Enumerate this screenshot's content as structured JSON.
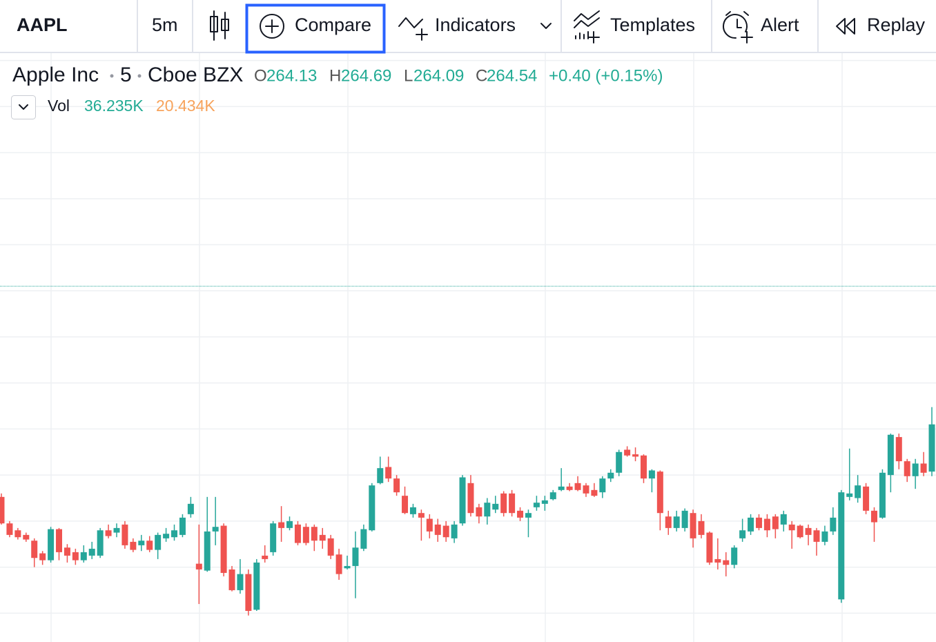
{
  "toolbar": {
    "symbol": "AAPL",
    "interval": "5m",
    "buttons": [
      "Compare",
      "Indicators",
      "Templates",
      "Alert",
      "Replay"
    ]
  },
  "legend": {
    "name": "Apple Inc",
    "interval": "5",
    "exchange": "Cboe BZX",
    "open_label": "O",
    "open": 264.13,
    "high_label": "H",
    "high": 264.69,
    "low_label": "L",
    "low": 264.09,
    "close_label": "C",
    "close": 264.54,
    "change": "+0.40 (+0.15%)",
    "volume_label": "Vol",
    "volume": "36.235K",
    "volume_ma": "20.434K"
  },
  "chart_data": {
    "type": "candlestick",
    "up_color": "#26a69a",
    "down_color": "#ef5350",
    "ylim": [
      262.65,
      267.77
    ],
    "ygrid": [
      262.9,
      263.3,
      263.7,
      264.1,
      264.5,
      264.9,
      265.3,
      265.7,
      266.1,
      266.5,
      266.9,
      267.3,
      267.7
    ],
    "ref_line": 265.74,
    "open": [
      263.91,
      263.68,
      263.62,
      263.58,
      263.53,
      263.42,
      263.36,
      263.63,
      263.47,
      263.43,
      263.36,
      263.4,
      263.4,
      263.62,
      263.6,
      263.67,
      263.52,
      263.49,
      263.53,
      263.45,
      263.55,
      263.56,
      263.58,
      263.76,
      263.33,
      263.27,
      263.61,
      263.66,
      263.28,
      263.1,
      263.24,
      262.93,
      263.4,
      263.43,
      263.69,
      263.64,
      263.67,
      263.65,
      263.65,
      263.58,
      263.55,
      263.41,
      263.29,
      263.31,
      263.46,
      263.62,
      264.03,
      264.17,
      264.07,
      263.92,
      263.76,
      263.77,
      263.72,
      263.67,
      263.66,
      263.55,
      263.68,
      264.03,
      263.82,
      263.74,
      263.8,
      263.94,
      263.94,
      263.79,
      263.73,
      263.82,
      263.85,
      263.89,
      263.97,
      264.0,
      264.03,
      264.01,
      263.97,
      263.95,
      264.07,
      264.12,
      264.32,
      264.28,
      264.27,
      264.07,
      264.13,
      263.74,
      263.64,
      263.64,
      263.77,
      263.7,
      263.6,
      263.37,
      263.36,
      263.32,
      263.55,
      263.61,
      263.73,
      263.72,
      263.74,
      263.67,
      263.67,
      263.66,
      263.64,
      263.62,
      263.52,
      263.61,
      263.02,
      263.91,
      263.9,
      264.0,
      263.79,
      263.73,
      264.1,
      264.43,
      264.22,
      264.09,
      264.2,
      264.13
    ],
    "high": [
      263.94,
      263.7,
      263.64,
      263.6,
      263.55,
      263.44,
      263.65,
      263.64,
      263.5,
      263.46,
      263.49,
      263.52,
      263.64,
      263.67,
      263.68,
      263.7,
      263.55,
      263.58,
      263.57,
      263.6,
      263.64,
      263.67,
      263.76,
      263.91,
      263.67,
      263.91,
      263.91,
      263.68,
      263.31,
      263.37,
      263.28,
      263.37,
      263.49,
      263.7,
      263.83,
      263.74,
      263.7,
      263.68,
      263.67,
      263.64,
      263.58,
      263.46,
      263.4,
      263.61,
      263.67,
      264.03,
      264.26,
      264.26,
      264.1,
      264.0,
      263.85,
      263.8,
      263.76,
      263.72,
      263.7,
      263.7,
      264.1,
      264.1,
      263.85,
      263.9,
      263.92,
      263.96,
      263.97,
      263.82,
      263.8,
      263.92,
      263.92,
      263.97,
      264.16,
      264.03,
      264.09,
      264.03,
      264.03,
      264.09,
      264.15,
      264.32,
      264.35,
      264.34,
      264.28,
      264.15,
      264.14,
      263.79,
      263.79,
      263.81,
      263.8,
      263.76,
      263.61,
      263.55,
      263.43,
      263.49,
      263.72,
      263.76,
      263.76,
      263.76,
      263.76,
      263.79,
      263.7,
      263.67,
      263.67,
      263.64,
      263.66,
      263.82,
      263.97,
      264.33,
      264.1,
      264.03,
      263.82,
      264.15,
      264.46,
      264.46,
      264.24,
      264.24,
      264.3,
      264.69
    ],
    "low": [
      263.67,
      263.56,
      263.54,
      263.52,
      263.3,
      263.32,
      263.34,
      263.36,
      263.34,
      263.32,
      263.34,
      263.37,
      263.38,
      263.55,
      263.56,
      263.46,
      263.43,
      263.44,
      263.43,
      263.37,
      263.52,
      263.53,
      263.56,
      263.73,
      262.98,
      263.26,
      263.49,
      263.22,
      263.09,
      263.07,
      262.88,
      262.92,
      263.34,
      263.4,
      263.52,
      263.62,
      263.49,
      263.49,
      263.44,
      263.46,
      263.37,
      263.19,
      263.28,
      263.03,
      263.44,
      263.61,
      264.02,
      264.04,
      263.92,
      263.76,
      263.73,
      263.53,
      263.55,
      263.52,
      263.52,
      263.51,
      263.66,
      263.74,
      263.68,
      263.67,
      263.77,
      263.74,
      263.74,
      263.7,
      263.56,
      263.79,
      263.79,
      263.88,
      263.96,
      263.96,
      263.96,
      263.91,
      263.91,
      263.9,
      264.04,
      264.09,
      264.26,
      264.22,
      264.03,
      263.95,
      263.62,
      263.58,
      263.61,
      263.61,
      263.47,
      263.55,
      263.32,
      263.28,
      263.22,
      263.29,
      263.52,
      263.58,
      263.62,
      263.56,
      263.55,
      263.61,
      263.46,
      263.55,
      263.49,
      263.4,
      263.49,
      263.58,
      262.99,
      263.88,
      263.86,
      263.76,
      263.52,
      263.72,
      263.95,
      264.15,
      264.04,
      263.98,
      264.09,
      264.09
    ],
    "close": [
      263.68,
      263.58,
      263.56,
      263.54,
      263.38,
      263.36,
      263.63,
      263.43,
      263.4,
      263.36,
      263.43,
      263.46,
      263.62,
      263.57,
      263.64,
      263.49,
      263.45,
      263.53,
      263.45,
      263.58,
      263.59,
      263.62,
      263.73,
      263.85,
      263.28,
      263.61,
      263.65,
      263.25,
      263.1,
      263.24,
      262.92,
      263.34,
      263.37,
      263.68,
      263.64,
      263.7,
      263.51,
      263.51,
      263.53,
      263.53,
      263.4,
      263.24,
      263.31,
      263.47,
      263.63,
      264.01,
      264.16,
      264.07,
      263.95,
      263.77,
      263.82,
      263.73,
      263.61,
      263.58,
      263.56,
      263.67,
      264.08,
      263.77,
      263.74,
      263.86,
      263.85,
      263.77,
      263.77,
      263.73,
      263.77,
      263.86,
      263.88,
      263.95,
      264.0,
      263.97,
      263.97,
      263.94,
      263.92,
      264.07,
      264.12,
      264.3,
      264.27,
      264.26,
      264.07,
      264.14,
      263.77,
      263.64,
      263.74,
      263.79,
      263.55,
      263.58,
      263.34,
      263.34,
      263.32,
      263.47,
      263.62,
      263.73,
      263.64,
      263.62,
      263.63,
      263.76,
      263.62,
      263.56,
      263.58,
      263.52,
      263.61,
      263.73,
      263.95,
      263.94,
      264.01,
      263.79,
      263.69,
      264.12,
      264.45,
      264.22,
      264.09,
      264.2,
      264.12,
      264.54
    ]
  }
}
